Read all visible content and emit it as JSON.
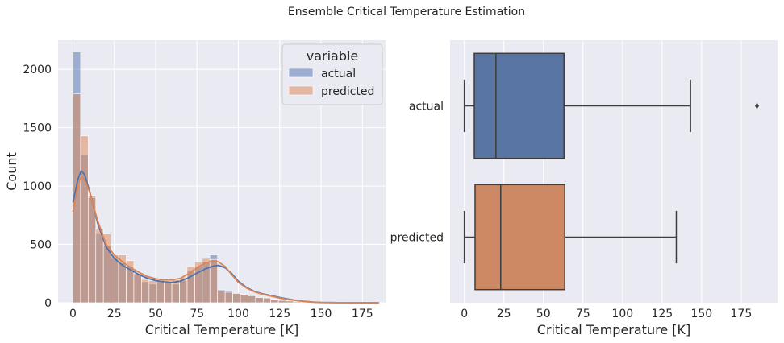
{
  "figure": {
    "suptitle": "Ensemble Critical Temperature Estimation"
  },
  "chart_data": [
    {
      "type": "bar",
      "subtype": "histogram-with-kde",
      "xlabel": "Critical Temperature [K]",
      "ylabel": "Count",
      "xlim": [
        -9,
        189
      ],
      "ylim": [
        0,
        2250
      ],
      "xticks": [
        0,
        25,
        50,
        75,
        100,
        125,
        150,
        175
      ],
      "yticks": [
        0,
        500,
        1000,
        1500,
        2000
      ],
      "grid": true,
      "legend": {
        "title": "variable",
        "position": "top-right"
      },
      "bin_width": 4.6,
      "bin_start": 0,
      "series": [
        {
          "name": "actual",
          "color": "#4c72b0",
          "counts": [
            2150,
            1270,
            900,
            590,
            490,
            380,
            340,
            310,
            250,
            180,
            160,
            190,
            180,
            160,
            190,
            270,
            310,
            350,
            410,
            110,
            100,
            80,
            70,
            60,
            45,
            40,
            30,
            20,
            15,
            8,
            6,
            4,
            3,
            2,
            2,
            1,
            1,
            1,
            1,
            1
          ],
          "kde": [
            [
              0,
              860
            ],
            [
              3,
              1060
            ],
            [
              5,
              1130
            ],
            [
              7,
              1100
            ],
            [
              10,
              960
            ],
            [
              15,
              680
            ],
            [
              20,
              480
            ],
            [
              25,
              380
            ],
            [
              30,
              320
            ],
            [
              35,
              280
            ],
            [
              40,
              240
            ],
            [
              45,
              210
            ],
            [
              50,
              190
            ],
            [
              55,
              180
            ],
            [
              60,
              175
            ],
            [
              65,
              185
            ],
            [
              70,
              215
            ],
            [
              75,
              255
            ],
            [
              80,
              290
            ],
            [
              85,
              315
            ],
            [
              88,
              320
            ],
            [
              92,
              300
            ],
            [
              96,
              250
            ],
            [
              100,
              185
            ],
            [
              105,
              130
            ],
            [
              110,
              95
            ],
            [
              115,
              75
            ],
            [
              120,
              60
            ],
            [
              125,
              45
            ],
            [
              130,
              32
            ],
            [
              135,
              20
            ],
            [
              140,
              12
            ],
            [
              145,
              6
            ],
            [
              150,
              3
            ],
            [
              160,
              1
            ],
            [
              185,
              0
            ]
          ]
        },
        {
          "name": "predicted",
          "color": "#dd8452",
          "counts": [
            1790,
            1430,
            920,
            630,
            590,
            410,
            410,
            360,
            250,
            200,
            190,
            190,
            185,
            195,
            220,
            310,
            350,
            380,
            370,
            100,
            90,
            80,
            70,
            60,
            45,
            40,
            30,
            20,
            15,
            8,
            5,
            3,
            2,
            1,
            1,
            0,
            0,
            0,
            0,
            0
          ],
          "kde": [
            [
              0,
              780
            ],
            [
              3,
              1010
            ],
            [
              5,
              1080
            ],
            [
              7,
              1060
            ],
            [
              10,
              950
            ],
            [
              15,
              700
            ],
            [
              20,
              500
            ],
            [
              25,
              410
            ],
            [
              30,
              350
            ],
            [
              35,
              300
            ],
            [
              40,
              260
            ],
            [
              45,
              225
            ],
            [
              50,
              205
            ],
            [
              55,
              195
            ],
            [
              60,
              195
            ],
            [
              65,
              210
            ],
            [
              70,
              250
            ],
            [
              75,
              300
            ],
            [
              80,
              340
            ],
            [
              85,
              360
            ],
            [
              88,
              350
            ],
            [
              92,
              310
            ],
            [
              96,
              240
            ],
            [
              100,
              175
            ],
            [
              105,
              125
            ],
            [
              110,
              92
            ],
            [
              115,
              72
            ],
            [
              120,
              56
            ],
            [
              125,
              40
            ],
            [
              130,
              28
            ],
            [
              135,
              18
            ],
            [
              140,
              10
            ],
            [
              145,
              5
            ],
            [
              150,
              2
            ],
            [
              160,
              1
            ],
            [
              185,
              0
            ]
          ]
        }
      ]
    },
    {
      "type": "box",
      "xlabel": "Critical Temperature [K]",
      "ylabel": "",
      "xlim": [
        -9,
        198
      ],
      "xticks": [
        0,
        25,
        50,
        75,
        100,
        125,
        150,
        175
      ],
      "categories": [
        "actual",
        "predicted"
      ],
      "grid": true,
      "boxes": [
        {
          "name": "actual",
          "color": "#5875a4",
          "whislo": 0.0,
          "q1": 6.3,
          "median": 20.0,
          "q3": 63.0,
          "whishi": 143.0,
          "fliers": [
            185.0
          ]
        },
        {
          "name": "predicted",
          "color": "#cc8963",
          "whislo": 0.0,
          "q1": 6.8,
          "median": 23.0,
          "q3": 63.5,
          "whishi": 134.0,
          "fliers": []
        }
      ]
    }
  ]
}
